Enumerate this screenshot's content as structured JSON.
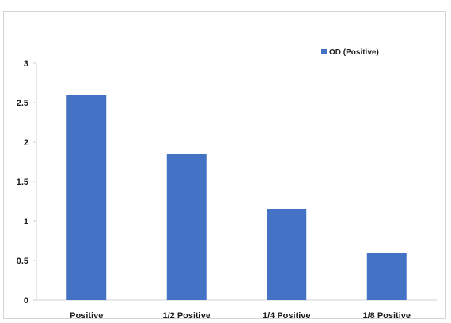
{
  "chart_data": {
    "type": "bar",
    "categories": [
      "Positive",
      "1/2 Positive",
      "1/4 Positive",
      "1/8 Positive"
    ],
    "series": [
      {
        "name": "OD (Positive)",
        "values": [
          2.6,
          1.85,
          1.15,
          0.6
        ]
      }
    ],
    "title": "",
    "xlabel": "",
    "ylabel": "",
    "ylim": [
      0,
      3
    ],
    "yticks": [
      0,
      0.5,
      1,
      1.5,
      2,
      2.5,
      3
    ],
    "ytick_labels": [
      "0",
      "0.5",
      "1",
      "1.5",
      "2",
      "2.5",
      "3"
    ],
    "grid": false,
    "legend_position": "top-right",
    "bar_color": "#4472c4"
  }
}
